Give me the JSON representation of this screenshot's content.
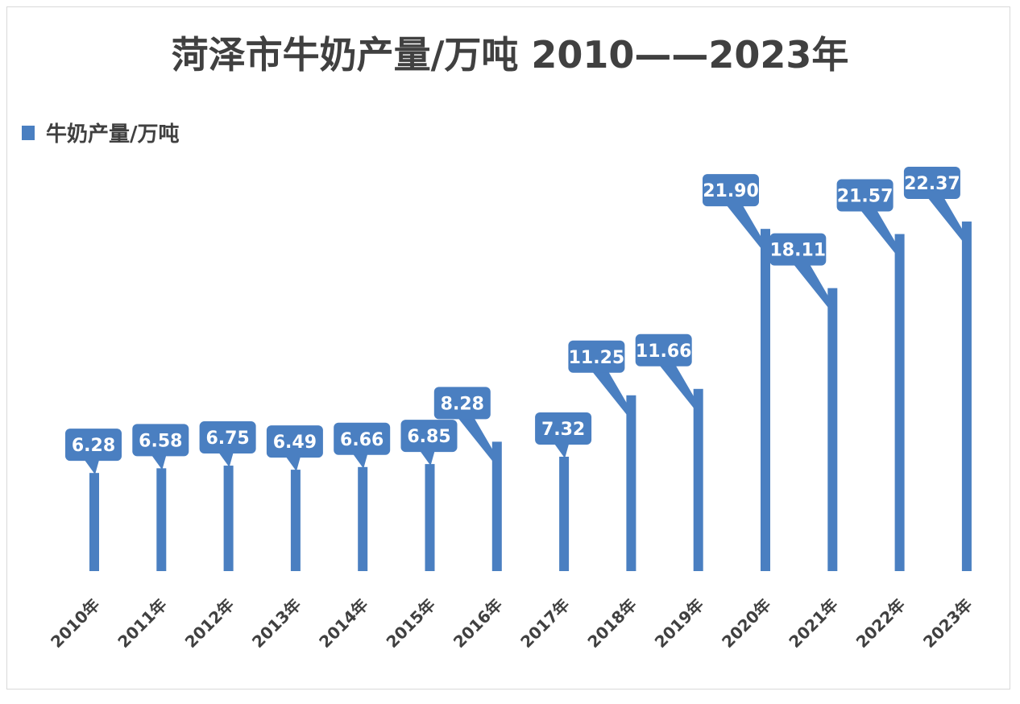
{
  "title": "菏泽市牛奶产量/万吨 2010——2023年",
  "legend": {
    "label": "牛奶产量/万吨"
  },
  "colors": {
    "bar": "#4a7fc1",
    "text": "#404040"
  },
  "chart_data": {
    "type": "bar",
    "title": "菏泽市牛奶产量/万吨 2010——2023年",
    "categories": [
      "2010年",
      "2011年",
      "2012年",
      "2013年",
      "2014年",
      "2015年",
      "2016年",
      "2017年",
      "2018年",
      "2019年",
      "2020年",
      "2021年",
      "2022年",
      "2023年"
    ],
    "series": [
      {
        "name": "牛奶产量/万吨",
        "values": [
          6.28,
          6.58,
          6.75,
          6.49,
          6.66,
          6.85,
          8.28,
          7.32,
          11.25,
          11.66,
          21.9,
          18.11,
          21.57,
          22.37
        ],
        "labels": [
          "6.28",
          "6.58",
          "6.75",
          "6.49",
          "6.66",
          "6.85",
          "8.28",
          "7.32",
          "11.25",
          "11.66",
          "21.90",
          "18.11",
          "21.57",
          "22.37"
        ]
      }
    ],
    "ylim": [
      0,
      23.3
    ],
    "grid": false,
    "legend_position": "top-left",
    "data_labels": true
  }
}
